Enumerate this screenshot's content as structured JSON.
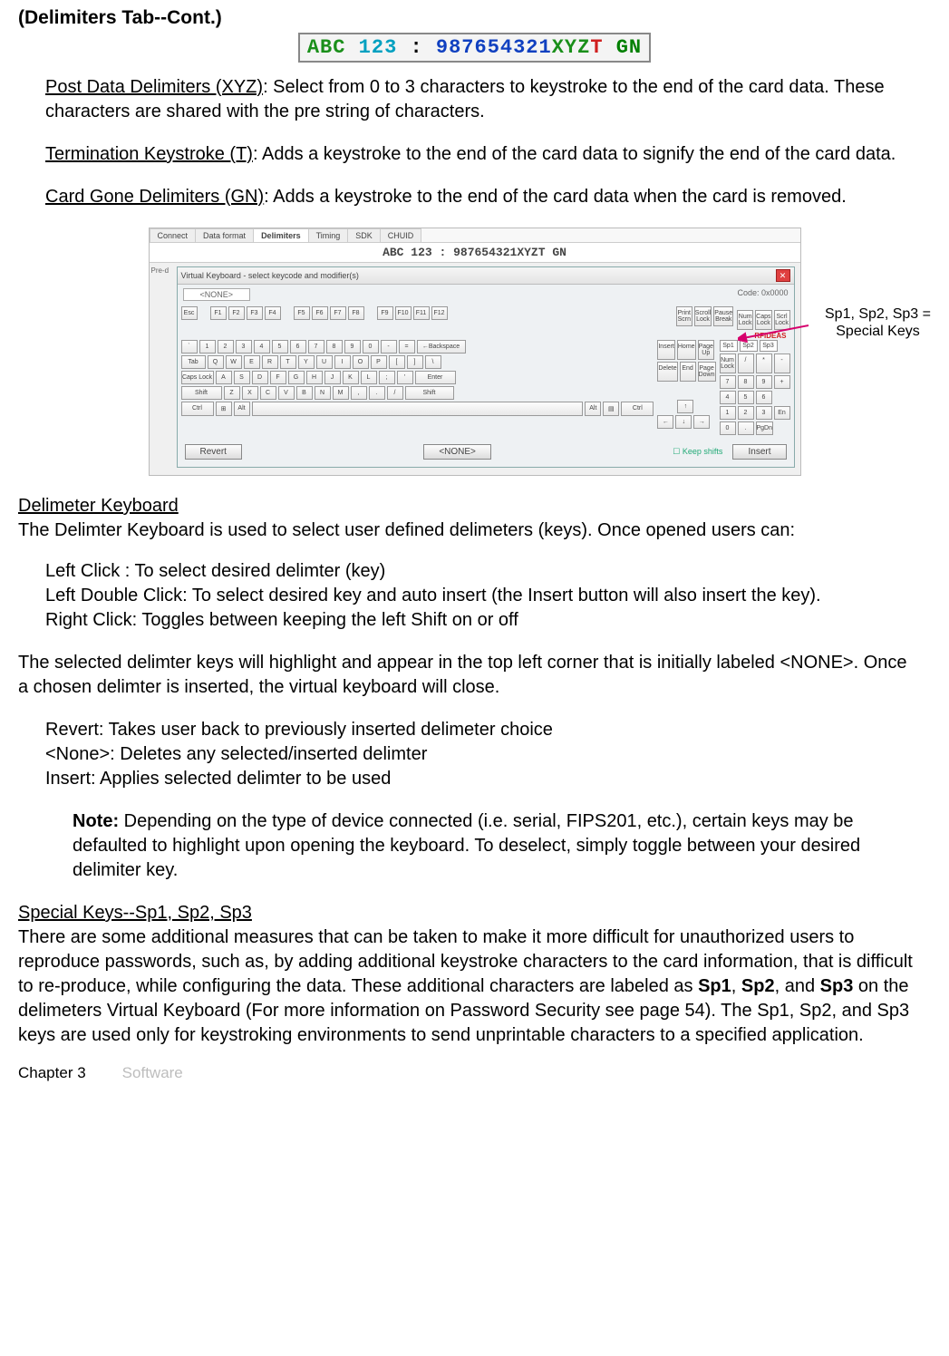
{
  "heading": "(Delimiters Tab--Cont.)",
  "banner": {
    "segments": [
      {
        "text": "ABC",
        "colorClass": "c-green"
      },
      {
        "text": " 123",
        "colorClass": "c-cyan"
      },
      {
        "text": " : ",
        "colorClass": "c-black"
      },
      {
        "text": "987654321",
        "colorClass": "c-blue"
      },
      {
        "text": "XYZ",
        "colorClass": "c-green"
      },
      {
        "text": "T",
        "colorClass": "c-red"
      },
      {
        "text": "  GN",
        "colorClass": "c-dgreen"
      }
    ]
  },
  "para1_label": "Post Data Delimiters (XYZ)",
  "para1_rest": ": Select from 0 to 3 characters to keystroke to the end of the card data. These characters are shared with the pre string of characters.",
  "para2_label": "Termination Keystroke (T)",
  "para2_rest": ": Adds a keystroke to the end of the card data to signify the end of the card data.",
  "para3_label": "Card Gone Delimiters (GN)",
  "para3_rest": ": Adds a keystroke to the end of the card data when the card is removed.",
  "shot": {
    "tabs": [
      "Connect",
      "Data format",
      "Delimiters",
      "Timing",
      "SDK",
      "CHUID"
    ],
    "active_tab_index": 2,
    "mini_banner_segments": [
      {
        "text": "ABC",
        "colorClass": "c-green"
      },
      {
        "text": " 123",
        "colorClass": "c-cyan"
      },
      {
        "text": " : ",
        "colorClass": "c-black"
      },
      {
        "text": "987654321",
        "colorClass": "c-blue"
      },
      {
        "text": "XYZ",
        "colorClass": "c-green"
      },
      {
        "text": "T",
        "colorClass": "c-red"
      },
      {
        "text": "  GN",
        "colorClass": "c-dgreen"
      }
    ],
    "pre_label": "Pre-d",
    "vk_title": "Virtual Keyboard - select keycode and modifier(s)",
    "none_label": "<NONE>",
    "code_label": "Code: 0x0000",
    "rfid_label": "RFIDEAS",
    "sp_labels": [
      "Sp1",
      "Sp2",
      "Sp3"
    ],
    "bottom": {
      "revert": "Revert",
      "none": "<NONE>",
      "keep": "Keep shifts",
      "insert": "Insert"
    },
    "annot_line1": "Sp1, Sp2, Sp3 =",
    "annot_line2": "Special Keys",
    "row_fn": [
      "Esc",
      "",
      "F1",
      "F2",
      "F3",
      "F4",
      "",
      "F5",
      "F6",
      "F7",
      "F8",
      "",
      "F9",
      "F10",
      "F11",
      "F12"
    ],
    "row_nav1": [
      "Print\nScrn",
      "Scroll\nLock",
      "Pause\nBreak"
    ],
    "row_nav2": [
      "Insert",
      "Home",
      "Page\nUp"
    ],
    "row_nav3": [
      "Delete",
      "End",
      "Page\nDown"
    ],
    "row_num_top": [
      "Num\nLock",
      "/",
      "*",
      "-"
    ],
    "row1": [
      "`",
      "1",
      "2",
      "3",
      "4",
      "5",
      "6",
      "7",
      "8",
      "9",
      "0",
      "-",
      "="
    ],
    "row2": [
      "Q",
      "W",
      "E",
      "R",
      "T",
      "Y",
      "U",
      "I",
      "O",
      "P",
      "[",
      "]",
      "\\"
    ],
    "row3": [
      "A",
      "S",
      "D",
      "F",
      "G",
      "H",
      "J",
      "K",
      "L",
      ";",
      "'"
    ],
    "row4": [
      "Z",
      "X",
      "C",
      "V",
      "B",
      "N",
      "M",
      ",",
      ".",
      "/"
    ],
    "caps_lock_label": "Caps\nLock",
    "numpad": {
      "r1": [
        "7",
        "8",
        "9",
        "+"
      ],
      "r2": [
        "4",
        "5",
        "6"
      ],
      "r3": [
        "1",
        "2",
        "3",
        "En"
      ],
      "r4": [
        "0",
        ".",
        "PgDn"
      ]
    }
  },
  "dk_heading": "Delimeter Keyboard",
  "dk_intro": "The Delimter Keyboard is used to select user defined delimeters (keys). Once opened users can:",
  "dk_l1": "Left Click : To select desired delimter (key)",
  "dk_l2": "Left Double Click: To select desired key and auto insert (the Insert button will also insert the key).",
  "dk_l3": "Right Click: Toggles between keeping the left Shift on or off",
  "dk_p2": "The selected delimter keys will highlight and appear in the top left corner that is initially labeled <NONE>. Once a chosen delimter is inserted, the virtual keyboard will close.",
  "dk_r1": "Revert: Takes user back to previously inserted delimeter choice",
  "dk_r2": "<None>: Deletes any selected/inserted delimter",
  "dk_r3": "Insert: Applies selected delimter to be used",
  "note_label": "Note:",
  "note_text": " Depending on the type of device connected (i.e. serial, FIPS201, etc.), certain keys may be defaulted to highlight upon opening the keyboard. To deselect, simply toggle between your desired delimiter key.",
  "sk_heading": "Special Keys--Sp1, Sp2, Sp3",
  "sk_text_a": "There are some additional measures that can be taken to make it more difficult for unauthorized users to reproduce passwords, such as, by adding additional keystroke characters to the card information, that is difficult to re-produce, while configuring the data. These additional characters are labeled as ",
  "sk_b1": "Sp1",
  "sk_c1": ", ",
  "sk_b2": "Sp2",
  "sk_c2": ", and ",
  "sk_b3": "Sp3",
  "sk_text_b": " on the delimeters Virtual Keyboard (For more information on Password Security see page 54). The Sp1, Sp2, and Sp3 keys are used only for keystroking environments to send unprintable characters to a specified application.",
  "footer_chapter": "Chapter 3",
  "footer_section": "Software"
}
